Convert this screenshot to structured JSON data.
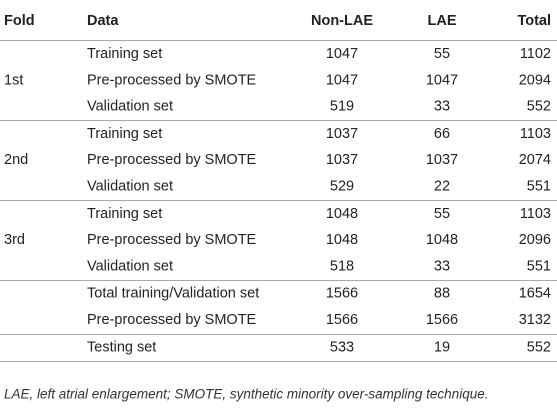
{
  "table": {
    "header": [
      "Fold",
      "Data",
      "Non-LAE",
      "LAE",
      "Total"
    ],
    "groups": [
      {
        "fold": "1st",
        "rows": [
          [
            "Training set",
            1047,
            55,
            1102
          ],
          [
            "Pre-processed by SMOTE",
            1047,
            1047,
            2094
          ],
          [
            "Validation set",
            519,
            33,
            552
          ]
        ]
      },
      {
        "fold": "2nd",
        "rows": [
          [
            "Training set",
            1037,
            66,
            1103
          ],
          [
            "Pre-processed by SMOTE",
            1037,
            1037,
            2074
          ],
          [
            "Validation set",
            529,
            22,
            551
          ]
        ]
      },
      {
        "fold": "3rd",
        "rows": [
          [
            "Training set",
            1048,
            55,
            1103
          ],
          [
            "Pre-processed by SMOTE",
            1048,
            1048,
            2096
          ],
          [
            "Validation set",
            518,
            33,
            551
          ]
        ]
      },
      {
        "rows": [
          [
            "Total training/Validation set",
            1566,
            88,
            1654
          ],
          [
            "Pre-processed by SMOTE",
            1566,
            1566,
            3132
          ]
        ]
      },
      {
        "rows": [
          [
            "Testing set",
            533,
            19,
            552
          ]
        ]
      }
    ]
  },
  "footnote": "LAE, left atrial enlargement; SMOTE, synthetic minority over-sampling technique."
}
